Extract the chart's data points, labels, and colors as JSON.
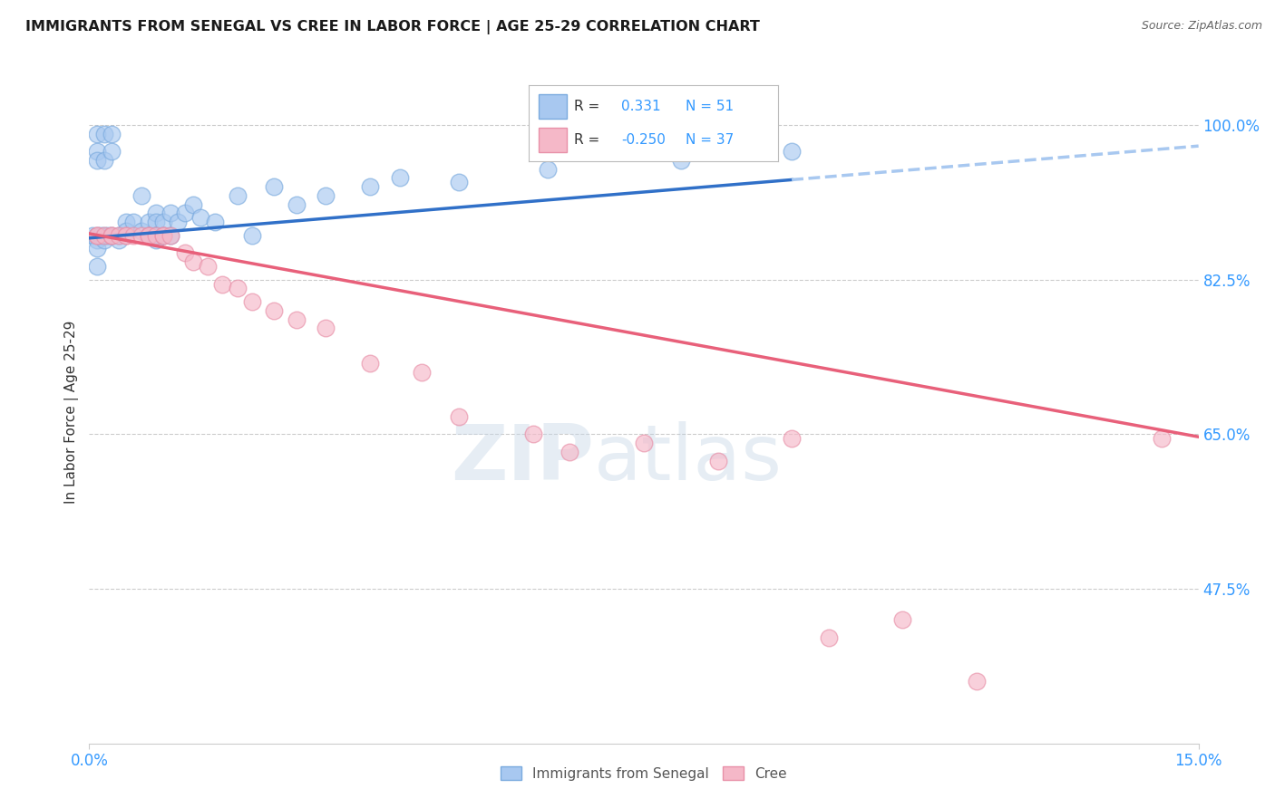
{
  "title": "IMMIGRANTS FROM SENEGAL VS CREE IN LABOR FORCE | AGE 25-29 CORRELATION CHART",
  "source_text": "Source: ZipAtlas.com",
  "ylabel": "In Labor Force | Age 25-29",
  "xlim": [
    0.0,
    0.15
  ],
  "ylim": [
    0.3,
    1.05
  ],
  "xtick_labels": [
    "0.0%",
    "15.0%"
  ],
  "xtick_positions": [
    0.0,
    0.15
  ],
  "ytick_labels": [
    "100.0%",
    "82.5%",
    "65.0%",
    "47.5%"
  ],
  "ytick_positions": [
    1.0,
    0.825,
    0.65,
    0.475
  ],
  "watermark_zip": "ZIP",
  "watermark_atlas": "atlas",
  "blue_color": "#A8C8F0",
  "blue_edge": "#7AAADE",
  "pink_color": "#F5B8C8",
  "pink_edge": "#E890A8",
  "trend_blue_solid": "#3070C8",
  "trend_blue_dash": "#A8C8F0",
  "trend_pink": "#E8607A",
  "background": "#FFFFFF",
  "senegal_x": [
    0.0005,
    0.001,
    0.001,
    0.001,
    0.001,
    0.001,
    0.001,
    0.001,
    0.0015,
    0.002,
    0.002,
    0.002,
    0.002,
    0.0025,
    0.003,
    0.003,
    0.003,
    0.004,
    0.004,
    0.005,
    0.005,
    0.006,
    0.007,
    0.007,
    0.008,
    0.008,
    0.009,
    0.009,
    0.009,
    0.009,
    0.009,
    0.01,
    0.01,
    0.011,
    0.011,
    0.012,
    0.013,
    0.014,
    0.015,
    0.017,
    0.02,
    0.022,
    0.025,
    0.028,
    0.032,
    0.038,
    0.042,
    0.05,
    0.062,
    0.08,
    0.095
  ],
  "senegal_y": [
    0.875,
    0.99,
    0.97,
    0.96,
    0.875,
    0.87,
    0.86,
    0.84,
    0.875,
    0.99,
    0.96,
    0.875,
    0.87,
    0.875,
    0.99,
    0.97,
    0.875,
    0.875,
    0.87,
    0.89,
    0.88,
    0.89,
    0.92,
    0.88,
    0.89,
    0.875,
    0.9,
    0.89,
    0.875,
    0.875,
    0.87,
    0.89,
    0.875,
    0.9,
    0.875,
    0.89,
    0.9,
    0.91,
    0.895,
    0.89,
    0.92,
    0.875,
    0.93,
    0.91,
    0.92,
    0.93,
    0.94,
    0.935,
    0.95,
    0.96,
    0.97
  ],
  "cree_x": [
    0.001,
    0.001,
    0.002,
    0.003,
    0.003,
    0.004,
    0.005,
    0.005,
    0.006,
    0.007,
    0.008,
    0.008,
    0.009,
    0.01,
    0.01,
    0.011,
    0.013,
    0.014,
    0.016,
    0.018,
    0.02,
    0.022,
    0.025,
    0.028,
    0.032,
    0.038,
    0.045,
    0.05,
    0.06,
    0.065,
    0.075,
    0.085,
    0.095,
    0.1,
    0.11,
    0.12,
    0.145
  ],
  "cree_y": [
    0.875,
    0.875,
    0.875,
    0.875,
    0.875,
    0.875,
    0.875,
    0.875,
    0.875,
    0.875,
    0.875,
    0.875,
    0.875,
    0.875,
    0.875,
    0.875,
    0.855,
    0.845,
    0.84,
    0.82,
    0.815,
    0.8,
    0.79,
    0.78,
    0.77,
    0.73,
    0.72,
    0.67,
    0.65,
    0.63,
    0.64,
    0.62,
    0.645,
    0.42,
    0.44,
    0.37,
    0.645
  ],
  "trend_senegal_x0": 0.0,
  "trend_senegal_y0": 0.872,
  "trend_senegal_x1": 0.095,
  "trend_senegal_y1": 0.938,
  "trend_senegal_xdash0": 0.095,
  "trend_senegal_xdash1": 0.15,
  "trend_cree_x0": 0.0,
  "trend_cree_y0": 0.877,
  "trend_cree_x1": 0.15,
  "trend_cree_y1": 0.647
}
